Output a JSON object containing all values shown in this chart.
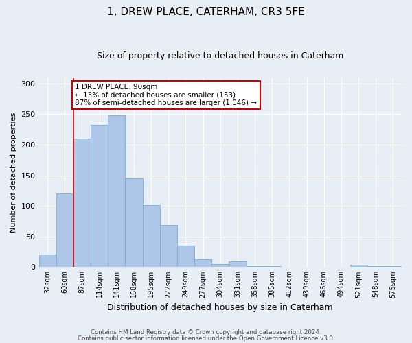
{
  "title": "1, DREW PLACE, CATERHAM, CR3 5FE",
  "subtitle": "Size of property relative to detached houses in Caterham",
  "xlabel": "Distribution of detached houses by size in Caterham",
  "ylabel": "Number of detached properties",
  "categories": [
    "32sqm",
    "60sqm",
    "87sqm",
    "114sqm",
    "141sqm",
    "168sqm",
    "195sqm",
    "222sqm",
    "249sqm",
    "277sqm",
    "304sqm",
    "331sqm",
    "358sqm",
    "385sqm",
    "412sqm",
    "439sqm",
    "466sqm",
    "494sqm",
    "521sqm",
    "548sqm",
    "575sqm"
  ],
  "values": [
    20,
    120,
    210,
    232,
    248,
    145,
    101,
    69,
    35,
    13,
    5,
    9,
    2,
    1,
    0,
    0,
    0,
    0,
    4,
    1,
    2
  ],
  "bar_color": "#aec6e8",
  "bar_edge_color": "#7aafd4",
  "property_line_color": "#cc0000",
  "annotation_text": "1 DREW PLACE: 90sqm\n← 13% of detached houses are smaller (153)\n87% of semi-detached houses are larger (1,046) →",
  "annotation_box_color": "#ffffff",
  "annotation_box_edge": "#cc0000",
  "ylim": [
    0,
    310
  ],
  "yticks": [
    0,
    50,
    100,
    150,
    200,
    250,
    300
  ],
  "footer_line1": "Contains HM Land Registry data © Crown copyright and database right 2024.",
  "footer_line2": "Contains public sector information licensed under the Open Government Licence v3.0.",
  "bg_color": "#e8eef5",
  "plot_bg_color": "#e8eef5",
  "title_fontsize": 11,
  "subtitle_fontsize": 9,
  "xlabel_fontsize": 9,
  "ylabel_fontsize": 8
}
